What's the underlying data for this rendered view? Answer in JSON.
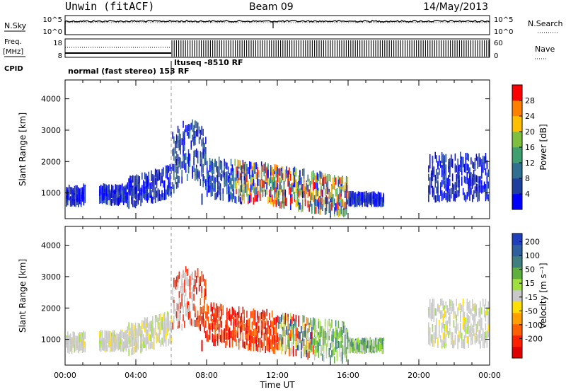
{
  "header": {
    "station": "Unwin (fitACF)",
    "beam": "Beam 09",
    "date": "14/May/2013"
  },
  "side_labels": {
    "nsky": "N.Sky",
    "nsearch": "N.Search",
    "freq": "Freq.",
    "freq_unit": "[MHz]",
    "nave": "Nave",
    "cpid": "CPID"
  },
  "top_axes": {
    "noise_left_ticks": [
      "10^5",
      "10^0"
    ],
    "noise_right_ticks": [
      "10^5",
      "10^0"
    ],
    "freq_left_ticks": [
      "18",
      "8"
    ],
    "freq_right_ticks": [
      "60",
      "0"
    ]
  },
  "cpid": {
    "first": "normal (fast stereo)  153 RF",
    "second": "ltuseq  -8510 RF"
  },
  "chart_data": [
    {
      "type": "heatmap",
      "name": "power",
      "ylabel": "Slant Range [km]",
      "xlabel": "",
      "xlim": [
        0,
        24
      ],
      "ylim": [
        180,
        4600
      ],
      "yticks": [
        "1000",
        "2000",
        "3000",
        "4000"
      ],
      "colorbar": {
        "label": "Power [dB]",
        "ticks": [
          "4",
          "8",
          "12",
          "16",
          "20",
          "24",
          "28"
        ],
        "range": [
          0,
          32
        ],
        "colors": [
          "#0000ff",
          "#1f3f9f",
          "#2f6f8f",
          "#3f9f6f",
          "#7fbf3f",
          "#ffbf00",
          "#ff7f00",
          "#ff0000"
        ]
      }
    },
    {
      "type": "heatmap",
      "name": "velocity",
      "ylabel": "Slant Range [km]",
      "xlabel": "Time UT",
      "xlim": [
        0,
        24
      ],
      "ylim": [
        180,
        4600
      ],
      "yticks": [
        "1000",
        "2000",
        "3000",
        "4000"
      ],
      "xticks": [
        "00:00",
        "04:00",
        "08:00",
        "12:00",
        "16:00",
        "20:00",
        "00:00"
      ],
      "colorbar": {
        "label": "Velocity [m s⁻¹]",
        "ticks": [
          "200",
          "100",
          "50",
          "15",
          "-15",
          "-50",
          "-100",
          "-200"
        ],
        "colors": [
          "#1f3fbf",
          "#2f5f9f",
          "#3f7f7f",
          "#5faf3f",
          "#9fdf3f",
          "#c8c8c8",
          "#ffdf00",
          "#ffa000",
          "#ff6000",
          "#ff2000",
          "#df0000"
        ]
      }
    }
  ]
}
